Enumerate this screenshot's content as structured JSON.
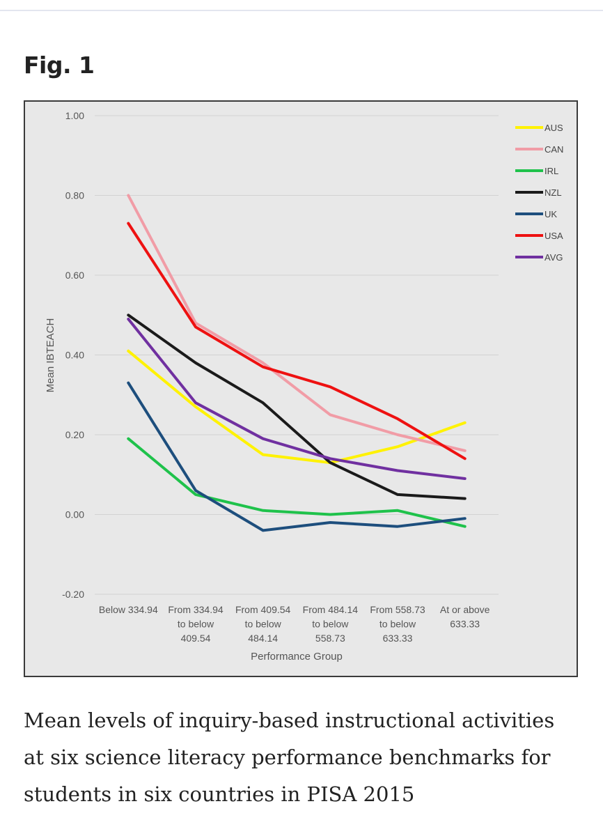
{
  "figure": {
    "label": "Fig. 1",
    "caption": "Mean levels of inquiry-based instructional activities at six science literacy performance benchmarks for students in six countries in PISA 2015"
  },
  "chart_data": {
    "type": "line",
    "title": "",
    "xlabel": "Performance Group",
    "ylabel": "Mean IBTEACH",
    "ylim": [
      -0.2,
      1.0
    ],
    "yticks": [
      1.0,
      0.8,
      0.6,
      0.4,
      0.2,
      0.0,
      -0.2
    ],
    "ytick_labels": [
      "1.00",
      "0.80",
      "0.60",
      "0.40",
      "0.20",
      "0.00",
      "-0.20"
    ],
    "grid": true,
    "legend_position": "top-right",
    "categories": [
      [
        "Below 334.94"
      ],
      [
        "From 334.94",
        "to below",
        "409.54"
      ],
      [
        "From 409.54",
        "to below",
        "484.14"
      ],
      [
        "From 484.14",
        "to below",
        "558.73"
      ],
      [
        "From 558.73",
        "to below",
        "633.33"
      ],
      [
        "At or above",
        "633.33"
      ]
    ],
    "series": [
      {
        "name": "AUS",
        "color": "#fff200",
        "values": [
          0.41,
          0.27,
          0.15,
          0.13,
          0.17,
          0.23
        ]
      },
      {
        "name": "CAN",
        "color": "#f19ca6",
        "values": [
          0.8,
          0.48,
          0.38,
          0.25,
          0.2,
          0.16
        ]
      },
      {
        "name": "IRL",
        "color": "#1fc24b",
        "values": [
          0.19,
          0.05,
          0.01,
          0.0,
          0.01,
          -0.03
        ]
      },
      {
        "name": "NZL",
        "color": "#1a1a1a",
        "values": [
          0.5,
          0.38,
          0.28,
          0.13,
          0.05,
          0.04
        ]
      },
      {
        "name": "UK",
        "color": "#1d4e7d",
        "values": [
          0.33,
          0.06,
          -0.04,
          -0.02,
          -0.03,
          -0.01
        ]
      },
      {
        "name": "USA",
        "color": "#ee1111",
        "values": [
          0.73,
          0.47,
          0.37,
          0.32,
          0.24,
          0.14
        ]
      },
      {
        "name": "AVG",
        "color": "#7030a0",
        "values": [
          0.49,
          0.28,
          0.19,
          0.14,
          0.11,
          0.09
        ]
      }
    ]
  }
}
